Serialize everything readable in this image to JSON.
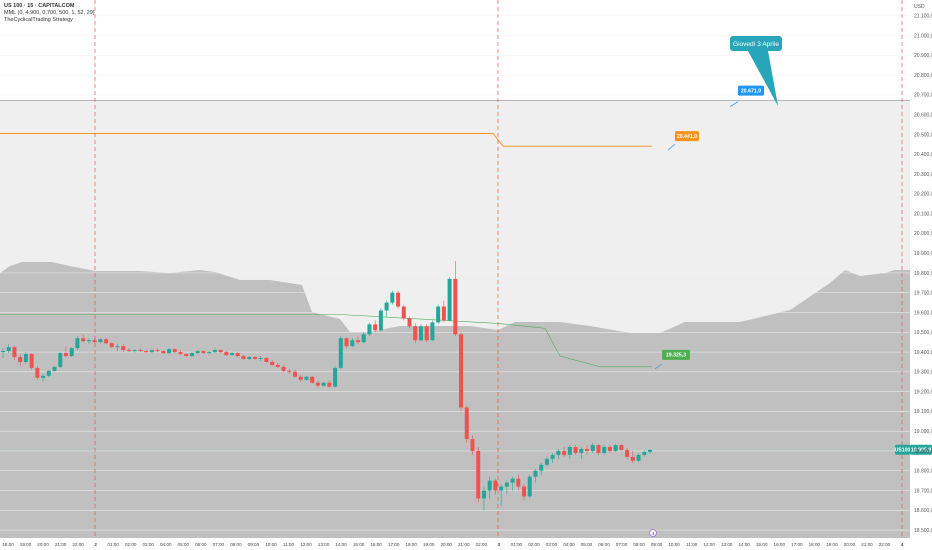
{
  "legend": {
    "symbol": "US 100 · 15 · CAPITALCOM",
    "indicator": "MML (0, 4.900, 0.700, 500, 1, 52, 29)",
    "strategy": "TheCyclicalTrading Strategy"
  },
  "currency": "USD",
  "axis": {
    "y_labels": [
      "21.100,0",
      "21.000,0",
      "20.900,0",
      "20.800,0",
      "20.700,0",
      "20.600,0",
      "20.500,0",
      "20.400,0",
      "20.300,0",
      "20.200,0",
      "20.100,0",
      "20.000,0",
      "19.900,0",
      "19.800,0",
      "19.700,0",
      "19.600,0",
      "19.500,0",
      "19.400,0",
      "19.300,0",
      "19.200,0",
      "19.100,0",
      "19.000,0",
      "18.900,0",
      "18.800,0",
      "18.700,0",
      "18.600,0",
      "18.500,0"
    ],
    "x_labels": [
      "18:00",
      "19:00",
      "20:00",
      "21:00",
      "22:00",
      "2",
      "01:00",
      "02:00",
      "03:00",
      "04:00",
      "05:00",
      "06:00",
      "07:00",
      "08:00",
      "09:00",
      "10:00",
      "11:00",
      "12:00",
      "13:00",
      "14:00",
      "15:00",
      "16:00",
      "17:00",
      "18:00",
      "19:00",
      "20:00",
      "21:00",
      "22:00",
      "3",
      "01:00",
      "02:00",
      "03:00",
      "04:00",
      "05:00",
      "06:00",
      "07:00",
      "08:00",
      "09:00",
      "10:00",
      "11:00",
      "12:00",
      "13:00",
      "14:00",
      "15:00",
      "16:00",
      "17:00",
      "18:00",
      "19:00",
      "20:00",
      "21:00",
      "22:00",
      "4"
    ]
  },
  "tags": {
    "upper_line": "20.671,0",
    "orange_line": "20.441,0",
    "green_line": "19.325,3",
    "current_price": "18.905,9",
    "current_symbol": "US100"
  },
  "callout": {
    "text": "Giovedì 3 Aprile"
  },
  "marker": {
    "text": "4"
  },
  "colors": {
    "up": "#26a69a",
    "down": "#ef5350",
    "orange": "#f7931a",
    "green": "#4caf50",
    "teal": "#26a6b8",
    "blue": "#2196f3",
    "session": "#ef5350",
    "zone_dark": "#c0c0c0",
    "zone_light": "#efefef"
  },
  "chart_data": {
    "type": "candlestick",
    "candles": [
      [
        19400,
        19420,
        19370,
        19405
      ],
      [
        19405,
        19440,
        19395,
        19425
      ],
      [
        19425,
        19430,
        19360,
        19375
      ],
      [
        19375,
        19390,
        19330,
        19350
      ],
      [
        19350,
        19400,
        19340,
        19390
      ],
      [
        19390,
        19395,
        19310,
        19320
      ],
      [
        19320,
        19330,
        19260,
        19270
      ],
      [
        19270,
        19290,
        19250,
        19280
      ],
      [
        19280,
        19310,
        19275,
        19305
      ],
      [
        19305,
        19330,
        19300,
        19325
      ],
      [
        19325,
        19400,
        19320,
        19395
      ],
      [
        19395,
        19430,
        19370,
        19380
      ],
      [
        19380,
        19425,
        19375,
        19420
      ],
      [
        19420,
        19480,
        19410,
        19470
      ],
      [
        19470,
        19490,
        19450,
        19455
      ],
      [
        19455,
        19470,
        19440,
        19460
      ],
      [
        19460,
        19470,
        19445,
        19450
      ],
      [
        19450,
        19470,
        19445,
        19465
      ],
      [
        19465,
        19470,
        19440,
        19445
      ],
      [
        19445,
        19450,
        19420,
        19425
      ],
      [
        19425,
        19440,
        19405,
        19430
      ],
      [
        19430,
        19440,
        19400,
        19410
      ],
      [
        19410,
        19420,
        19400,
        19405
      ],
      [
        19405,
        19415,
        19398,
        19410
      ],
      [
        19410,
        19420,
        19400,
        19405
      ],
      [
        19405,
        19412,
        19395,
        19400
      ],
      [
        19400,
        19415,
        19395,
        19410
      ],
      [
        19410,
        19420,
        19400,
        19405
      ],
      [
        19405,
        19410,
        19390,
        19395
      ],
      [
        19395,
        19420,
        19390,
        19415
      ],
      [
        19415,
        19420,
        19395,
        19400
      ],
      [
        19400,
        19410,
        19385,
        19390
      ],
      [
        19390,
        19395,
        19375,
        19380
      ],
      [
        19380,
        19400,
        19375,
        19395
      ],
      [
        19395,
        19410,
        19390,
        19405
      ],
      [
        19405,
        19410,
        19390,
        19395
      ],
      [
        19395,
        19405,
        19390,
        19400
      ],
      [
        19400,
        19420,
        19395,
        19410
      ],
      [
        19410,
        19415,
        19395,
        19400
      ],
      [
        19400,
        19405,
        19380,
        19385
      ],
      [
        19385,
        19400,
        19380,
        19395
      ],
      [
        19395,
        19400,
        19375,
        19380
      ],
      [
        19380,
        19385,
        19360,
        19365
      ],
      [
        19365,
        19380,
        19360,
        19375
      ],
      [
        19375,
        19380,
        19360,
        19365
      ],
      [
        19365,
        19380,
        19355,
        19370
      ],
      [
        19370,
        19375,
        19345,
        19350
      ],
      [
        19350,
        19360,
        19330,
        19335
      ],
      [
        19335,
        19345,
        19320,
        19325
      ],
      [
        19325,
        19335,
        19300,
        19305
      ],
      [
        19305,
        19315,
        19290,
        19300
      ],
      [
        19300,
        19310,
        19270,
        19275
      ],
      [
        19275,
        19285,
        19250,
        19260
      ],
      [
        19260,
        19280,
        19255,
        19275
      ],
      [
        19275,
        19280,
        19240,
        19245
      ],
      [
        19245,
        19255,
        19220,
        19230
      ],
      [
        19230,
        19250,
        19225,
        19245
      ],
      [
        19245,
        19255,
        19220,
        19225
      ],
      [
        19225,
        19330,
        19220,
        19320
      ],
      [
        19320,
        19480,
        19315,
        19470
      ],
      [
        19470,
        19475,
        19420,
        19430
      ],
      [
        19430,
        19470,
        19425,
        19460
      ],
      [
        19460,
        19480,
        19440,
        19450
      ],
      [
        19450,
        19500,
        19445,
        19490
      ],
      [
        19490,
        19550,
        19480,
        19540
      ],
      [
        19540,
        19560,
        19500,
        19510
      ],
      [
        19510,
        19620,
        19505,
        19610
      ],
      [
        19610,
        19660,
        19580,
        19650
      ],
      [
        19650,
        19710,
        19640,
        19700
      ],
      [
        19700,
        19710,
        19620,
        19630
      ],
      [
        19630,
        19640,
        19560,
        19570
      ],
      [
        19570,
        19580,
        19520,
        19530
      ],
      [
        19530,
        19545,
        19445,
        19460
      ],
      [
        19460,
        19540,
        19455,
        19530
      ],
      [
        19530,
        19540,
        19450,
        19460
      ],
      [
        19460,
        19560,
        19455,
        19550
      ],
      [
        19550,
        19640,
        19540,
        19630
      ],
      [
        19630,
        19660,
        19550,
        19560
      ],
      [
        19560,
        19780,
        19555,
        19770
      ],
      [
        19770,
        19860,
        19480,
        19490
      ],
      [
        19490,
        19500,
        19100,
        19120
      ],
      [
        19120,
        19130,
        18940,
        18960
      ],
      [
        18960,
        18980,
        18880,
        18900
      ],
      [
        18900,
        18920,
        18640,
        18660
      ],
      [
        18660,
        18720,
        18600,
        18700
      ],
      [
        18700,
        18770,
        18660,
        18750
      ],
      [
        18750,
        18760,
        18680,
        18700
      ],
      [
        18700,
        18730,
        18620,
        18720
      ],
      [
        18720,
        18750,
        18680,
        18740
      ],
      [
        18740,
        18770,
        18700,
        18760
      ],
      [
        18760,
        18780,
        18700,
        18720
      ],
      [
        18720,
        18730,
        18650,
        18670
      ],
      [
        18670,
        18780,
        18660,
        18770
      ],
      [
        18770,
        18810,
        18740,
        18800
      ],
      [
        18800,
        18840,
        18780,
        18830
      ],
      [
        18830,
        18870,
        18820,
        18860
      ],
      [
        18860,
        18890,
        18840,
        18880
      ],
      [
        18880,
        18910,
        18860,
        18900
      ],
      [
        18900,
        18920,
        18870,
        18880
      ],
      [
        18880,
        18930,
        18860,
        18920
      ],
      [
        18920,
        18930,
        18880,
        18890
      ],
      [
        18890,
        18920,
        18860,
        18910
      ],
      [
        18910,
        18930,
        18880,
        18900
      ],
      [
        18900,
        18940,
        18890,
        18930
      ],
      [
        18930,
        18935,
        18880,
        18890
      ],
      [
        18890,
        18930,
        18880,
        18920
      ],
      [
        18920,
        18930,
        18890,
        18900
      ],
      [
        18900,
        18935,
        18895,
        18930
      ],
      [
        18930,
        18935,
        18900,
        18905
      ],
      [
        18905,
        18915,
        18860,
        18870
      ],
      [
        18870,
        18900,
        18840,
        18850
      ],
      [
        18850,
        18890,
        18845,
        18880
      ],
      [
        18880,
        18900,
        18870,
        18895
      ],
      [
        18895,
        18910,
        18885,
        18905
      ]
    ],
    "upper_level": 20671,
    "orange_level": 20441,
    "green_level": 19325.3,
    "current_price": 18905.9,
    "ylim": [
      18460,
      21180
    ]
  }
}
